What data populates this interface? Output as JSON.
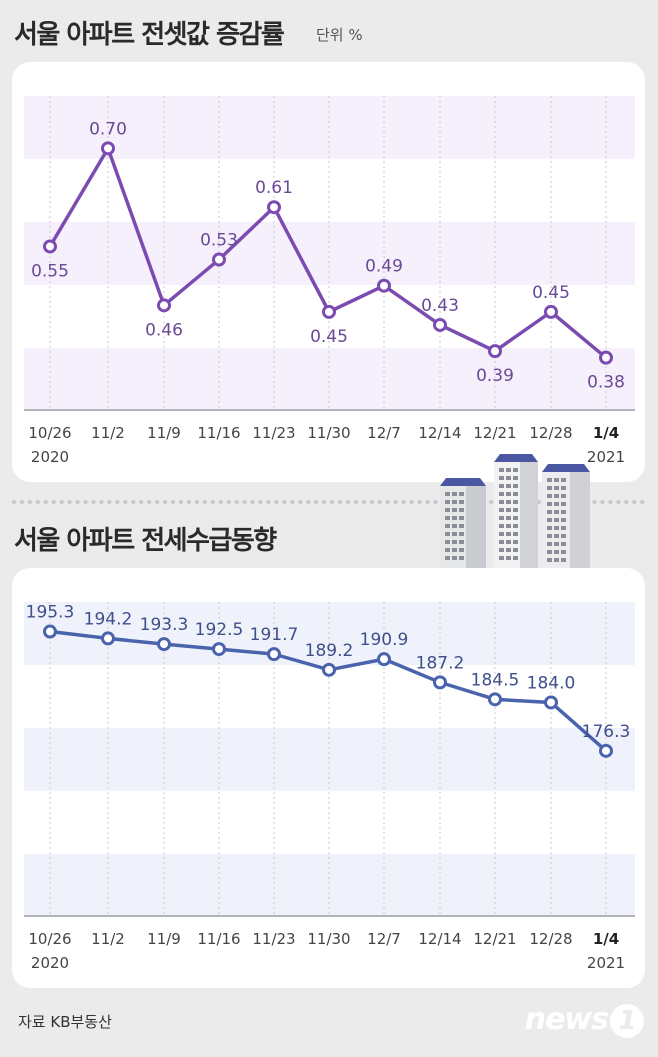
{
  "chart_data": [
    {
      "type": "line",
      "title": "서울 아파트 전셋값 증감률",
      "unit": "단위 %",
      "categories": [
        "10/26",
        "11/2",
        "11/9",
        "11/16",
        "11/23",
        "11/30",
        "12/7",
        "12/14",
        "12/21",
        "12/28",
        "1/4"
      ],
      "years": {
        "first": "2020",
        "last": "2021"
      },
      "values": [
        0.55,
        0.7,
        0.46,
        0.53,
        0.61,
        0.45,
        0.49,
        0.43,
        0.39,
        0.45,
        0.38
      ],
      "value_labels": [
        "0.55",
        "0.70",
        "0.46",
        "0.53",
        "0.61",
        "0.45",
        "0.49",
        "0.43",
        "0.39",
        "0.45",
        "0.38"
      ],
      "ylim": [
        0.3,
        0.78
      ],
      "line_color": "#7c4bb1",
      "band_color": "#f6f0fc",
      "label_color": "#6a4a96"
    },
    {
      "type": "line",
      "title": "서울 아파트 전세수급동향",
      "categories": [
        "10/26",
        "11/2",
        "11/9",
        "11/16",
        "11/23",
        "11/30",
        "12/7",
        "12/14",
        "12/21",
        "12/28",
        "1/4"
      ],
      "years": {
        "first": "2020",
        "last": "2021"
      },
      "values": [
        195.3,
        194.2,
        193.3,
        192.5,
        191.7,
        189.2,
        190.9,
        187.2,
        184.5,
        184.0,
        176.3
      ],
      "value_labels": [
        "195.3",
        "194.2",
        "193.3",
        "192.5",
        "191.7",
        "189.2",
        "190.9",
        "187.2",
        "184.5",
        "184.0",
        "176.3"
      ],
      "ylim": [
        150,
        200
      ],
      "line_color": "#4a63ad",
      "band_color": "#eff2fb",
      "label_color": "#3f4f8a"
    }
  ],
  "source": "자료  KB부동산",
  "logo": {
    "text": "news",
    "mark": "1"
  }
}
